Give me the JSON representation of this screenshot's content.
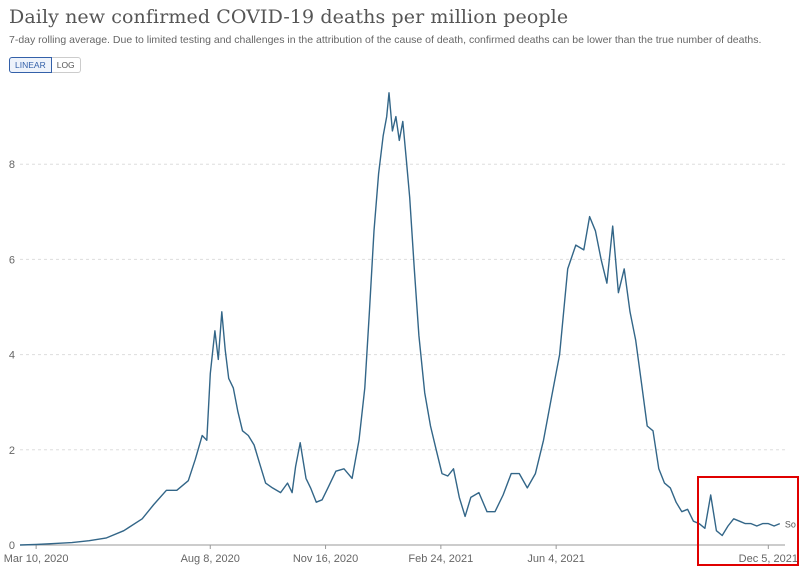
{
  "header": {
    "title": "Daily new confirmed COVID-19 deaths per million people",
    "subtitle": "7-day rolling average. Due to limited testing and challenges in the attribution of the cause of death, confirmed deaths can be lower than the true number of deaths."
  },
  "scale_toggle": {
    "linear_label": "LINEAR",
    "log_label": "LOG",
    "selected": "LINEAR"
  },
  "accent_color": "#3360a9",
  "line_color": "#336688",
  "highlight_color": "#e00000",
  "chart_data": {
    "type": "line",
    "title": "Daily new confirmed COVID-19 deaths per million people",
    "xlabel": "",
    "ylabel": "",
    "ylim": [
      0,
      9.6
    ],
    "yticks": [
      0,
      2,
      4,
      6,
      8
    ],
    "xticks": [
      "Mar 10, 2020",
      "Aug 8, 2020",
      "Nov 16, 2020",
      "Feb 24, 2021",
      "Jun 4, 2021",
      "Dec 5, 2021"
    ],
    "grid": true,
    "series_end_label": "So",
    "series": [
      {
        "name": "",
        "x": [
          "2020-02-25",
          "2020-03-10",
          "2020-03-25",
          "2020-04-10",
          "2020-04-25",
          "2020-05-10",
          "2020-05-25",
          "2020-06-10",
          "2020-06-20",
          "2020-07-01",
          "2020-07-10",
          "2020-07-20",
          "2020-07-26",
          "2020-08-01",
          "2020-08-05",
          "2020-08-08",
          "2020-08-12",
          "2020-08-15",
          "2020-08-18",
          "2020-08-21",
          "2020-08-24",
          "2020-08-28",
          "2020-09-01",
          "2020-09-05",
          "2020-09-10",
          "2020-09-15",
          "2020-09-20",
          "2020-09-25",
          "2020-10-01",
          "2020-10-08",
          "2020-10-14",
          "2020-10-18",
          "2020-10-21",
          "2020-10-25",
          "2020-10-30",
          "2020-11-03",
          "2020-11-08",
          "2020-11-13",
          "2020-11-18",
          "2020-11-25",
          "2020-12-02",
          "2020-12-09",
          "2020-12-15",
          "2020-12-20",
          "2020-12-24",
          "2020-12-28",
          "2021-01-01",
          "2021-01-05",
          "2021-01-08",
          "2021-01-10",
          "2021-01-13",
          "2021-01-16",
          "2021-01-19",
          "2021-01-22",
          "2021-01-25",
          "2021-01-28",
          "2021-02-01",
          "2021-02-05",
          "2021-02-10",
          "2021-02-15",
          "2021-02-20",
          "2021-02-25",
          "2021-03-02",
          "2021-03-07",
          "2021-03-12",
          "2021-03-17",
          "2021-03-22",
          "2021-03-29",
          "2021-04-05",
          "2021-04-12",
          "2021-04-19",
          "2021-04-26",
          "2021-05-03",
          "2021-05-10",
          "2021-05-17",
          "2021-05-24",
          "2021-05-31",
          "2021-06-07",
          "2021-06-14",
          "2021-06-21",
          "2021-06-28",
          "2021-07-03",
          "2021-07-08",
          "2021-07-13",
          "2021-07-18",
          "2021-07-23",
          "2021-07-28",
          "2021-08-02",
          "2021-08-07",
          "2021-08-12",
          "2021-08-17",
          "2021-08-22",
          "2021-08-27",
          "2021-09-01",
          "2021-09-06",
          "2021-09-11",
          "2021-09-16",
          "2021-09-21",
          "2021-09-26",
          "2021-10-01",
          "2021-10-06",
          "2021-10-11",
          "2021-10-16",
          "2021-10-21",
          "2021-10-26",
          "2021-10-31",
          "2021-11-05",
          "2021-11-10",
          "2021-11-15",
          "2021-11-20",
          "2021-11-25",
          "2021-11-30",
          "2021-12-05",
          "2021-12-10",
          "2021-12-15"
        ],
        "y": [
          0.0,
          0.01,
          0.03,
          0.05,
          0.09,
          0.15,
          0.3,
          0.55,
          0.85,
          1.15,
          1.15,
          1.35,
          1.8,
          2.3,
          2.2,
          3.6,
          4.5,
          3.9,
          4.9,
          4.1,
          3.5,
          3.3,
          2.8,
          2.4,
          2.3,
          2.1,
          1.7,
          1.3,
          1.2,
          1.1,
          1.3,
          1.1,
          1.65,
          2.15,
          1.4,
          1.2,
          0.9,
          0.95,
          1.2,
          1.55,
          1.6,
          1.4,
          2.2,
          3.3,
          4.9,
          6.6,
          7.8,
          8.6,
          9.0,
          9.5,
          8.7,
          9.0,
          8.5,
          8.9,
          8.1,
          7.3,
          5.8,
          4.4,
          3.2,
          2.5,
          2.0,
          1.5,
          1.45,
          1.6,
          1.0,
          0.6,
          1.0,
          1.1,
          0.7,
          0.7,
          1.05,
          1.5,
          1.5,
          1.2,
          1.5,
          2.2,
          3.1,
          4.0,
          5.8,
          6.3,
          6.2,
          6.9,
          6.6,
          6.0,
          5.5,
          6.7,
          5.3,
          5.8,
          4.9,
          4.3,
          3.4,
          2.5,
          2.4,
          1.6,
          1.3,
          1.2,
          0.9,
          0.7,
          0.75,
          0.5,
          0.45,
          0.35,
          1.05,
          0.3,
          0.2,
          0.4,
          0.55,
          0.5,
          0.45,
          0.45,
          0.4,
          0.45,
          0.45,
          0.4,
          0.45
        ]
      }
    ]
  }
}
